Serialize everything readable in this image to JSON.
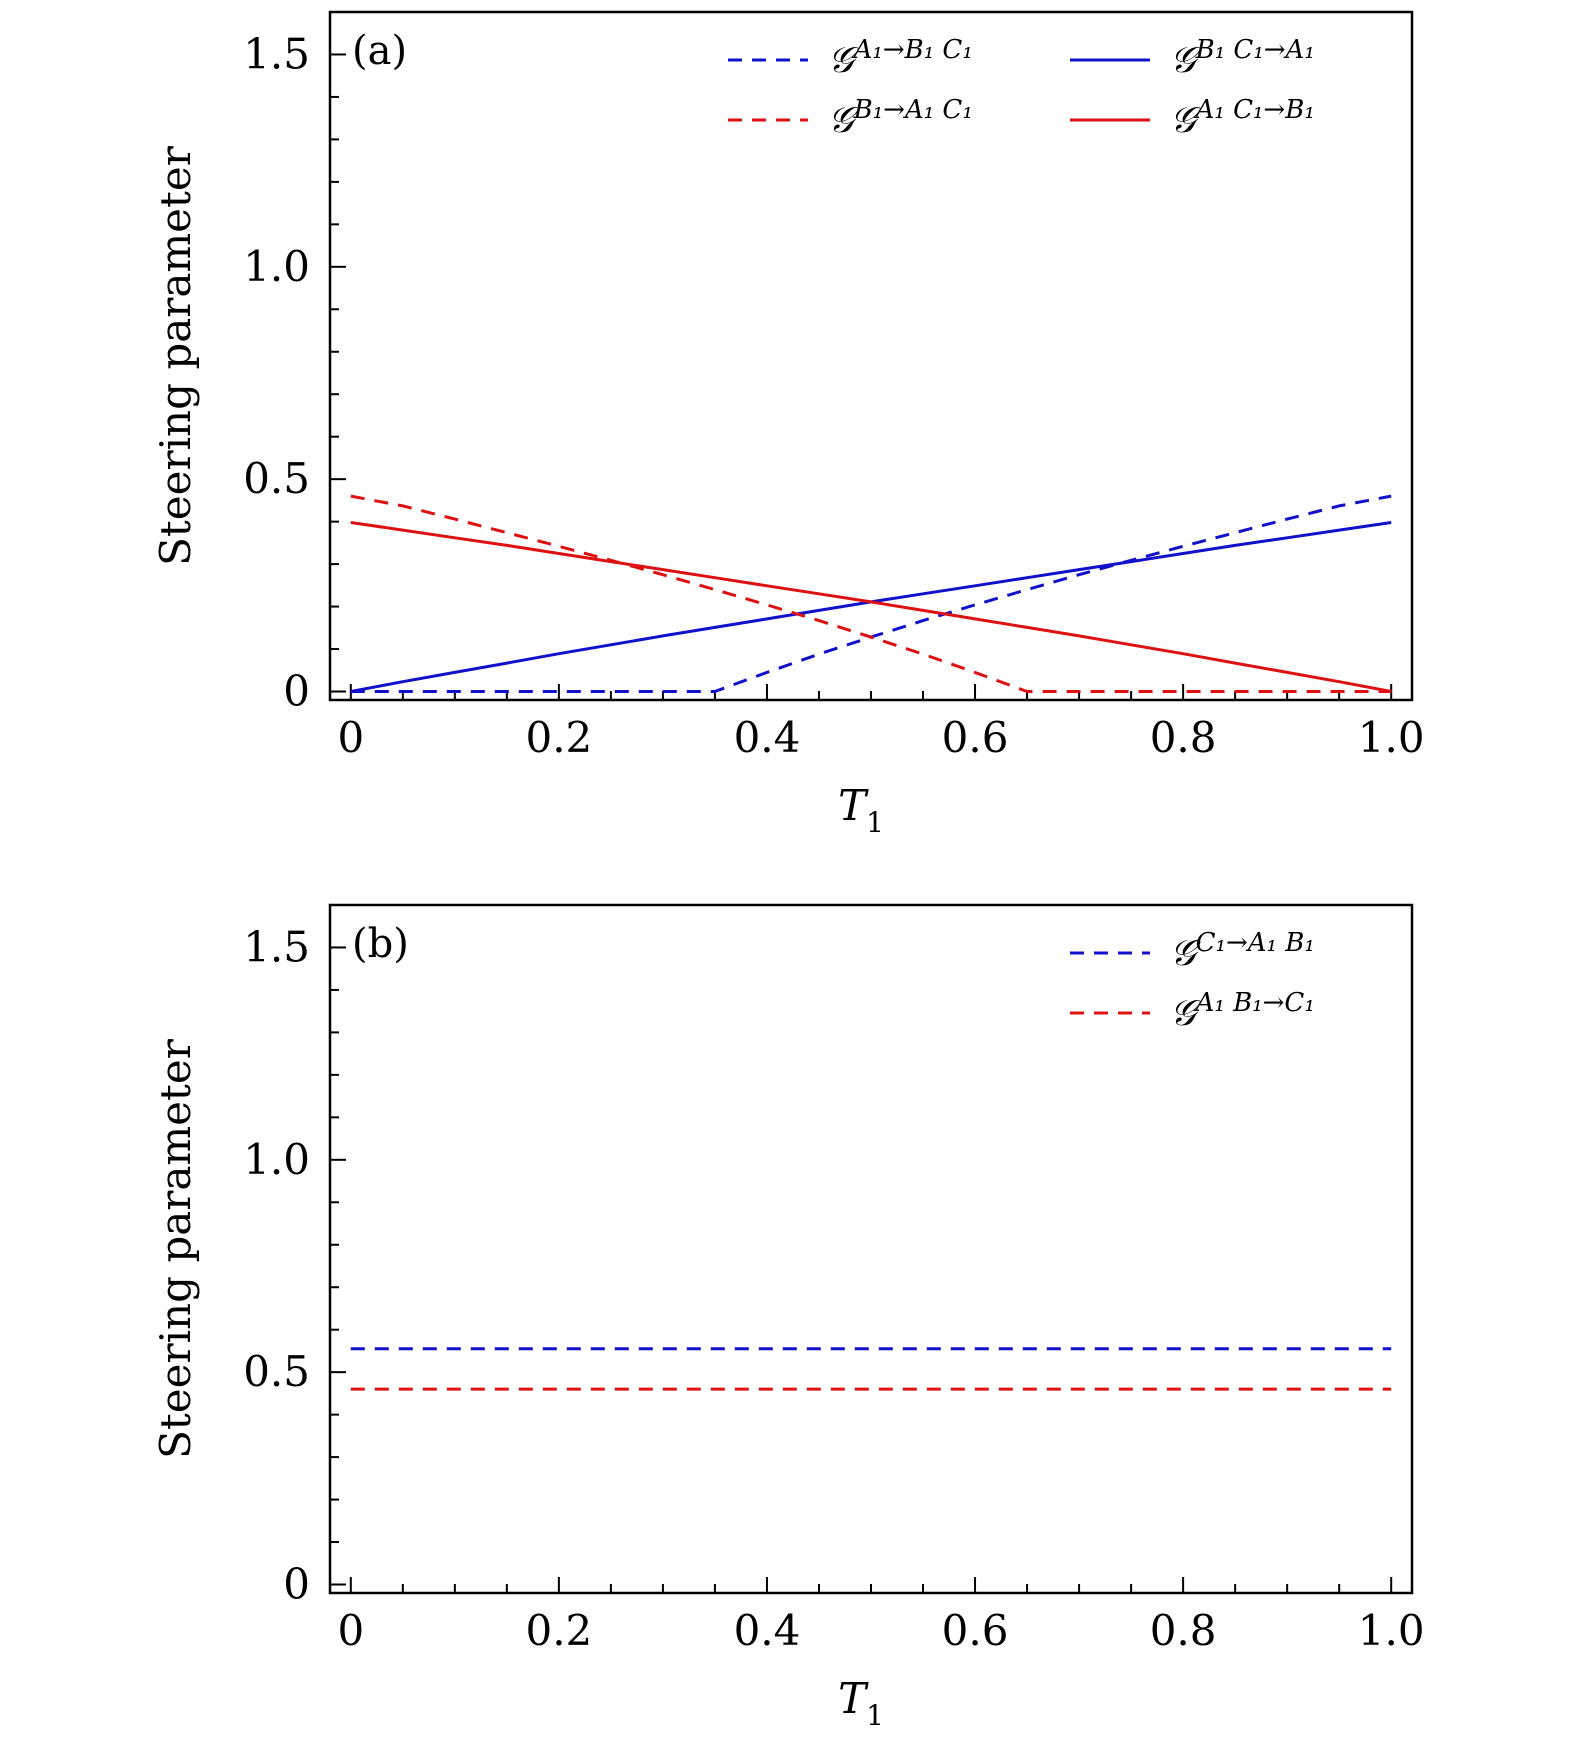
{
  "colors": {
    "blue": "#1111cc",
    "red": "#dd1111",
    "axis": "#000000"
  },
  "chart_data": [
    {
      "type": "line",
      "panel_label": "(a)",
      "xlabel": "T",
      "xlabel_sub": "1",
      "ylabel": "Steering parameter",
      "xlim": [
        -0.02,
        1.02
      ],
      "ylim": [
        -0.02,
        1.6
      ],
      "x_ticks": [
        0,
        0.2,
        0.4,
        0.6,
        0.8,
        1.0
      ],
      "x_tick_labels": [
        "0",
        "0.2",
        "0.4",
        "0.6",
        "0.8",
        "1.0"
      ],
      "y_ticks": [
        0,
        0.5,
        1.0,
        1.5
      ],
      "y_tick_labels": [
        "0",
        "0.5",
        "1.0",
        "1.5"
      ],
      "legend_position": "top-right",
      "legend_columns": 2,
      "series": [
        {
          "name": "𝒢^{A1→B1 C1}",
          "legend_main": "𝒢",
          "legend_sup": "A₁→B₁ C₁",
          "color": "blue",
          "style": "dashed",
          "x": [
            0,
            0.1,
            0.2,
            0.3,
            0.35,
            0.4,
            0.45,
            0.5,
            0.55,
            0.6,
            0.65,
            0.7,
            0.75,
            0.8,
            0.85,
            0.9,
            0.95,
            1.0
          ],
          "y": [
            0,
            0,
            0,
            0,
            0,
            0.045,
            0.088,
            0.128,
            0.167,
            0.204,
            0.24,
            0.275,
            0.309,
            0.342,
            0.374,
            0.406,
            0.437,
            0.46
          ]
        },
        {
          "name": "𝒢^{B1 C1→A1}",
          "legend_main": "𝒢",
          "legend_sup": "B₁ C₁→A₁",
          "color": "blue",
          "style": "solid",
          "x": [
            0,
            0.05,
            0.1,
            0.15,
            0.2,
            0.25,
            0.3,
            0.35,
            0.4,
            0.45,
            0.5,
            0.55,
            0.6,
            0.65,
            0.7,
            0.75,
            0.8,
            0.85,
            0.9,
            0.95,
            1.0
          ],
          "y": [
            0,
            0.023,
            0.045,
            0.067,
            0.089,
            0.11,
            0.131,
            0.151,
            0.171,
            0.191,
            0.211,
            0.23,
            0.249,
            0.268,
            0.287,
            0.306,
            0.325,
            0.344,
            0.362,
            0.38,
            0.398
          ]
        },
        {
          "name": "𝒢^{B1→A1 C1}",
          "legend_main": "𝒢",
          "legend_sup": "B₁→A₁ C₁",
          "color": "red",
          "style": "dashed",
          "x": [
            0,
            0.05,
            0.1,
            0.15,
            0.2,
            0.25,
            0.3,
            0.35,
            0.4,
            0.45,
            0.5,
            0.55,
            0.6,
            0.65,
            0.7,
            0.8,
            0.9,
            1.0
          ],
          "y": [
            0.46,
            0.437,
            0.406,
            0.374,
            0.342,
            0.309,
            0.275,
            0.24,
            0.204,
            0.167,
            0.128,
            0.088,
            0.045,
            0,
            0,
            0,
            0,
            0
          ]
        },
        {
          "name": "𝒢^{A1 C1→B1}",
          "legend_main": "𝒢",
          "legend_sup": "A₁ C₁→B₁",
          "color": "red",
          "style": "solid",
          "x": [
            0,
            0.05,
            0.1,
            0.15,
            0.2,
            0.25,
            0.3,
            0.35,
            0.4,
            0.45,
            0.5,
            0.55,
            0.6,
            0.65,
            0.7,
            0.75,
            0.8,
            0.85,
            0.9,
            0.95,
            1.0
          ],
          "y": [
            0.398,
            0.38,
            0.362,
            0.344,
            0.325,
            0.306,
            0.287,
            0.268,
            0.249,
            0.23,
            0.211,
            0.191,
            0.171,
            0.151,
            0.131,
            0.11,
            0.089,
            0.067,
            0.045,
            0.023,
            0
          ]
        }
      ]
    },
    {
      "type": "line",
      "panel_label": "(b)",
      "xlabel": "T",
      "xlabel_sub": "1",
      "ylabel": "Steering parameter",
      "xlim": [
        -0.02,
        1.02
      ],
      "ylim": [
        -0.02,
        1.6
      ],
      "x_ticks": [
        0,
        0.2,
        0.4,
        0.6,
        0.8,
        1.0
      ],
      "x_tick_labels": [
        "0",
        "0.2",
        "0.4",
        "0.6",
        "0.8",
        "1.0"
      ],
      "y_ticks": [
        0,
        0.5,
        1.0,
        1.5
      ],
      "y_tick_labels": [
        "0",
        "0.5",
        "1.0",
        "1.5"
      ],
      "legend_position": "top-right",
      "legend_columns": 1,
      "series": [
        {
          "name": "𝒢^{C1→A1 B1}",
          "legend_main": "𝒢",
          "legend_sup": "C₁→A₁ B₁",
          "color": "blue",
          "style": "dashed",
          "x": [
            0,
            1.0
          ],
          "y": [
            0.555,
            0.555
          ]
        },
        {
          "name": "𝒢^{A1 B1→C1}",
          "legend_main": "𝒢",
          "legend_sup": "A₁ B₁→C₁",
          "color": "red",
          "style": "dashed",
          "x": [
            0,
            1.0
          ],
          "y": [
            0.46,
            0.46
          ]
        }
      ]
    }
  ]
}
